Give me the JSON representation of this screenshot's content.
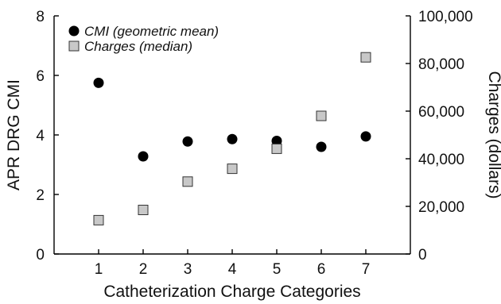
{
  "chart_data": {
    "type": "scatter",
    "xlabel": "Catheterization Charge Categories",
    "ylabel": "APR DRG CMI",
    "y2label": "Charges (dollars)",
    "x_ticks": [
      "1",
      "2",
      "3",
      "4",
      "5",
      "6",
      "7"
    ],
    "xlim": [
      0,
      8
    ],
    "ylim": [
      0,
      8
    ],
    "y_ticks": [
      "0",
      "2",
      "4",
      "6",
      "8"
    ],
    "y2lim": [
      0,
      100000
    ],
    "y2_ticks": [
      "0",
      "20,000",
      "40,000",
      "60,000",
      "80,000",
      "100,000"
    ],
    "grid": false,
    "legend_position": "top-left",
    "series": [
      {
        "name": "CMI (geometric mean)",
        "axis": "left",
        "marker": "circle",
        "color": "#000000",
        "x": [
          1,
          2,
          3,
          4,
          5,
          6,
          7
        ],
        "values": [
          5.75,
          3.28,
          3.78,
          3.86,
          3.8,
          3.6,
          3.95
        ]
      },
      {
        "name": "Charges (median)",
        "axis": "right",
        "marker": "square",
        "color": "#c8c8c8",
        "x": [
          1,
          2,
          3,
          4,
          5,
          6,
          7
        ],
        "values": [
          14200,
          18500,
          30400,
          35800,
          44200,
          58000,
          82600
        ]
      }
    ]
  }
}
